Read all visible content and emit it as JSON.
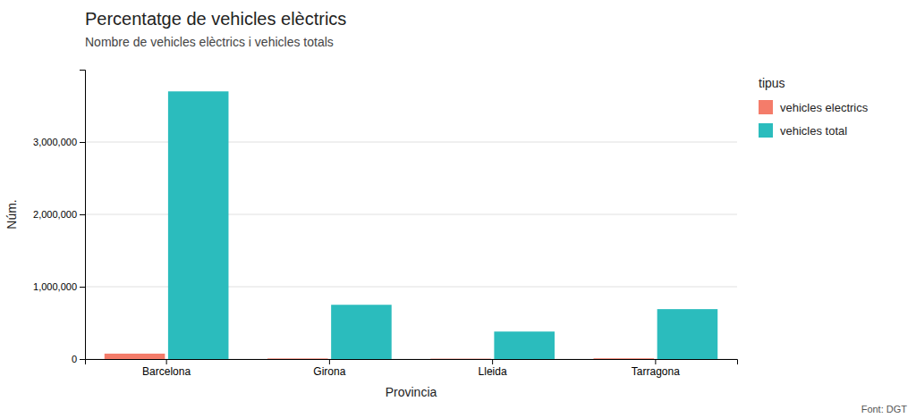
{
  "chart_data": {
    "type": "bar",
    "title": "Percentatge de vehicles elèctrics",
    "subtitle": "Nombre de vehicles elèctrics i vehicles totals",
    "xlabel": "Provincia",
    "ylabel": "Núm.",
    "footer": "Font: DGT",
    "legend_title": "tipus",
    "legend": "right",
    "grid": true,
    "categories": [
      "Barcelona",
      "Girona",
      "Lleida",
      "Tarragona"
    ],
    "series": [
      {
        "name": "vehicles electrics",
        "color": "#F47C6A",
        "values": [
          75000,
          8000,
          5000,
          10000
        ]
      },
      {
        "name": "vehicles total",
        "color": "#2BBCBD",
        "values": [
          3700000,
          750000,
          380000,
          690000
        ]
      }
    ],
    "ylim": [
      0,
      4000000
    ],
    "yticks": [
      0,
      {
        "value": 1000000,
        "label": "1,000,000"
      },
      {
        "value": 2000000,
        "label": "2,000,000"
      },
      {
        "value": 3000000,
        "label": "3,000,000"
      }
    ]
  }
}
